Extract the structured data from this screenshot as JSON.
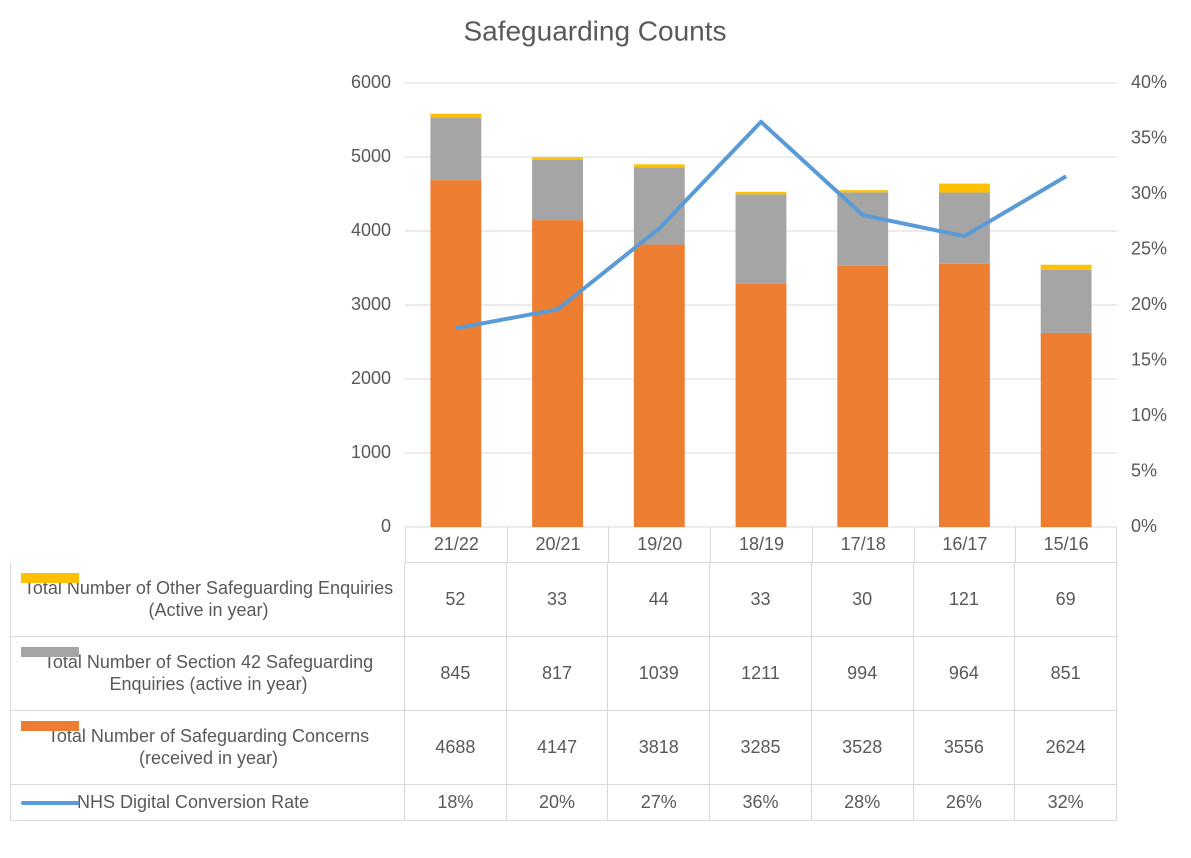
{
  "chart_data": {
    "type": "bar",
    "title": "Safeguarding Counts",
    "categories": [
      "21/22",
      "20/21",
      "19/20",
      "18/19",
      "17/18",
      "16/17",
      "15/16"
    ],
    "series": [
      {
        "name": "Total Number of Safeguarding Concerns (received in year)",
        "color": "#ED7D31",
        "values": [
          4688,
          4147,
          3818,
          3285,
          3528,
          3556,
          2624
        ]
      },
      {
        "name": "Total Number of Section 42 Safeguarding Enquiries (active in year)",
        "color": "#A5A5A5",
        "values": [
          845,
          817,
          1039,
          1211,
          994,
          964,
          851
        ]
      },
      {
        "name": "Total Number of Other Safeguarding Enquiries (Active in year)",
        "color": "#FFC000",
        "values": [
          52,
          33,
          44,
          33,
          30,
          121,
          69
        ]
      },
      {
        "name": "NHS Digital Conversion Rate",
        "color": "#5B9BD5",
        "type": "line",
        "axis": "y2",
        "values": [
          17.9,
          19.6,
          26.9,
          36.5,
          28.1,
          26.2,
          31.6
        ],
        "value_labels": [
          "18%",
          "20%",
          "27%",
          "36%",
          "28%",
          "26%",
          "32%"
        ]
      }
    ],
    "ylim": [
      0,
      6000
    ],
    "yticks": [
      0,
      1000,
      2000,
      3000,
      4000,
      5000,
      6000
    ],
    "y2lim": [
      0,
      40
    ],
    "y2ticks": [
      {
        "value": 0,
        "label": "0%"
      },
      {
        "value": 5,
        "label": "5%"
      },
      {
        "value": 10,
        "label": "10%"
      },
      {
        "value": 15,
        "label": "15%"
      },
      {
        "value": 20,
        "label": "20%"
      },
      {
        "value": 25,
        "label": "25%"
      },
      {
        "value": 30,
        "label": "30%"
      },
      {
        "value": 35,
        "label": "35%"
      },
      {
        "value": 40,
        "label": "40%"
      }
    ],
    "grid": true,
    "stacked": true
  }
}
